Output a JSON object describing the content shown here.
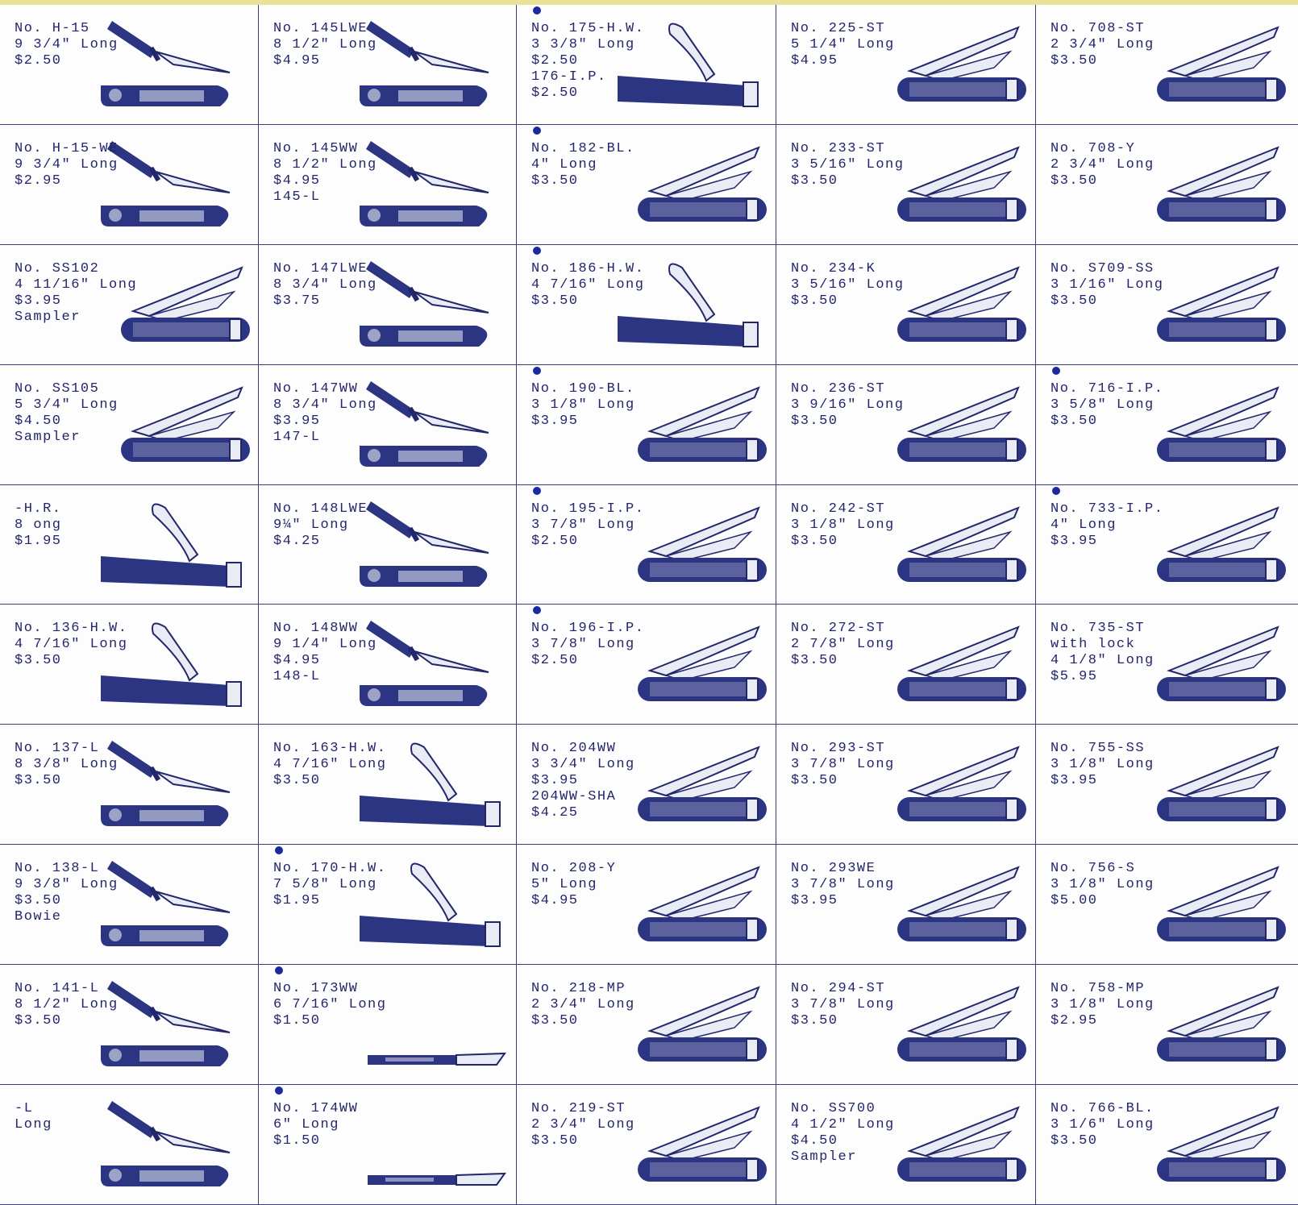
{
  "colors": {
    "ink": "#23276a",
    "handle": "#2c3582",
    "blade": "#e9ecf5",
    "accent": "#1c2a9e"
  },
  "cells": [
    {
      "lines": [
        "No. H-15",
        "9 3/4\" Long",
        "$2.50"
      ],
      "star": false,
      "icon": "sheath-knife-icon"
    },
    {
      "lines": [
        "No. 145LWE",
        "8 1/2\" Long",
        "$4.95"
      ],
      "star": false,
      "icon": "sheath-knife-icon"
    },
    {
      "lines": [
        "No. 175-H.W.",
        "3 3/8\" Long",
        "$2.50",
        "176-I.P.",
        "$2.50"
      ],
      "star": true,
      "icon": "hawkbill-knife-icon"
    },
    {
      "lines": [
        "No. 225-ST",
        "5 1/4\" Long",
        "$4.95"
      ],
      "star": false,
      "icon": "pocket-knife-icon"
    },
    {
      "lines": [
        "No. 708-ST",
        "2 3/4\" Long",
        "$3.50"
      ],
      "star": false,
      "icon": "pocket-knife-icon"
    },
    {
      "lines": [
        "No. H-15-WE",
        "9 3/4\" Long",
        "$2.95"
      ],
      "star": false,
      "icon": "sheath-knife-icon"
    },
    {
      "lines": [
        "No. 145WW",
        "8 1/2\" Long",
        "$4.95",
        "145-L"
      ],
      "star": false,
      "icon": "sheath-knife-icon"
    },
    {
      "lines": [
        "No. 182-BL.",
        "4\" Long",
        "$3.50"
      ],
      "star": true,
      "icon": "pocket-knife-icon"
    },
    {
      "lines": [
        "No. 233-ST",
        "3 5/16\" Long",
        "$3.50"
      ],
      "star": false,
      "icon": "pocket-knife-icon"
    },
    {
      "lines": [
        "No. 708-Y",
        "2 3/4\" Long",
        "$3.50"
      ],
      "star": false,
      "icon": "pocket-knife-icon"
    },
    {
      "lines": [
        "No. SS102",
        "4 11/16\" Long",
        "$3.95",
        "Sampler"
      ],
      "star": false,
      "icon": "pocket-knife-icon"
    },
    {
      "lines": [
        "No. 147LWE",
        "8 3/4\" Long",
        "$3.75"
      ],
      "star": false,
      "icon": "sheath-knife-icon"
    },
    {
      "lines": [
        "No. 186-H.W.",
        "4 7/16\" Long",
        "$3.50"
      ],
      "star": true,
      "icon": "hawkbill-knife-icon"
    },
    {
      "lines": [
        "No. 234-K",
        "3 5/16\" Long",
        "$3.50"
      ],
      "star": false,
      "icon": "pocket-knife-icon"
    },
    {
      "lines": [
        "No. S709-SS",
        "3 1/16\" Long",
        "$3.50"
      ],
      "star": false,
      "icon": "pocket-knife-icon"
    },
    {
      "lines": [
        "No. SS105",
        "5 3/4\" Long",
        "$4.50",
        "Sampler"
      ],
      "star": false,
      "icon": "pocket-knife-icon"
    },
    {
      "lines": [
        "No. 147WW",
        "8 3/4\" Long",
        "$3.95",
        "147-L"
      ],
      "star": false,
      "icon": "sheath-knife-icon"
    },
    {
      "lines": [
        "No. 190-BL.",
        "3 1/8\" Long",
        "$3.95"
      ],
      "star": true,
      "icon": "pocket-knife-icon"
    },
    {
      "lines": [
        "No. 236-ST",
        "3 9/16\" Long",
        "$3.50"
      ],
      "star": false,
      "icon": "pocket-knife-icon"
    },
    {
      "lines": [
        "No. 716-I.P.",
        "3 5/8\" Long",
        "$3.50"
      ],
      "star": true,
      "icon": "pocket-knife-icon"
    },
    {
      "lines": [
        "-H.R.",
        "8 ong",
        "$1.95"
      ],
      "star": false,
      "icon": "hawkbill-knife-icon"
    },
    {
      "lines": [
        "No. 148LWE",
        "9¼\" Long",
        "$4.25"
      ],
      "star": false,
      "icon": "sheath-knife-icon"
    },
    {
      "lines": [
        "No. 195-I.P.",
        "3 7/8\" Long",
        "$2.50"
      ],
      "star": true,
      "icon": "pocket-knife-icon"
    },
    {
      "lines": [
        "No. 242-ST",
        "3 1/8\" Long",
        "$3.50"
      ],
      "star": false,
      "icon": "pocket-knife-icon"
    },
    {
      "lines": [
        "No. 733-I.P.",
        "4\" Long",
        "$3.95"
      ],
      "star": true,
      "icon": "pocket-knife-icon"
    },
    {
      "lines": [
        "No. 136-H.W.",
        "4 7/16\" Long",
        "$3.50"
      ],
      "star": false,
      "icon": "hawkbill-knife-icon"
    },
    {
      "lines": [
        "No. 148WW",
        "9 1/4\" Long",
        "$4.95",
        "148-L"
      ],
      "star": false,
      "icon": "sheath-knife-icon"
    },
    {
      "lines": [
        "No. 196-I.P.",
        "3 7/8\" Long",
        "$2.50"
      ],
      "star": true,
      "icon": "pocket-knife-icon"
    },
    {
      "lines": [
        "No. 272-ST",
        "2 7/8\" Long",
        "$3.50"
      ],
      "star": false,
      "icon": "pocket-knife-icon"
    },
    {
      "lines": [
        "No. 735-ST",
        "with lock",
        "4 1/8\" Long",
        "$5.95"
      ],
      "star": false,
      "icon": "pocket-knife-icon"
    },
    {
      "lines": [
        "No. 137-L",
        "8 3/8\" Long",
        "$3.50"
      ],
      "star": false,
      "icon": "sheath-knife-icon"
    },
    {
      "lines": [
        "No. 163-H.W.",
        "4 7/16\" Long",
        "$3.50"
      ],
      "star": false,
      "icon": "hawkbill-knife-icon"
    },
    {
      "lines": [
        "No. 204WW",
        "3 3/4\" Long",
        "$3.95",
        "204WW-SHA",
        "$4.25"
      ],
      "star": false,
      "icon": "pocket-knife-icon"
    },
    {
      "lines": [
        "No. 293-ST",
        "3 7/8\" Long",
        "$3.50"
      ],
      "star": false,
      "icon": "pocket-knife-icon"
    },
    {
      "lines": [
        "No. 755-SS",
        "3 1/8\" Long",
        "$3.95"
      ],
      "star": false,
      "icon": "pocket-knife-icon"
    },
    {
      "lines": [
        "No. 138-L",
        "9 3/8\" Long",
        "$3.50",
        "Bowie"
      ],
      "star": false,
      "icon": "sheath-knife-icon"
    },
    {
      "lines": [
        "No. 170-H.W.",
        "7 5/8\" Long",
        "$1.95"
      ],
      "star": true,
      "icon": "hawkbill-knife-icon"
    },
    {
      "lines": [
        "No. 208-Y",
        "5\" Long",
        "$4.95"
      ],
      "star": false,
      "icon": "pocket-knife-icon"
    },
    {
      "lines": [
        "No. 293WE",
        "3 7/8\" Long",
        "$3.95"
      ],
      "star": false,
      "icon": "pocket-knife-icon"
    },
    {
      "lines": [
        "No. 756-S",
        "3 1/8\" Long",
        "$5.00"
      ],
      "star": false,
      "icon": "pocket-knife-icon"
    },
    {
      "lines": [
        "No. 141-L",
        "8 1/2\" Long",
        "$3.50"
      ],
      "star": false,
      "icon": "sheath-knife-icon"
    },
    {
      "lines": [
        "No. 173WW",
        "6 7/16\" Long",
        "$1.50"
      ],
      "star": true,
      "icon": "utility-knife-icon"
    },
    {
      "lines": [
        "No. 218-MP",
        "2 3/4\" Long",
        "$3.50"
      ],
      "star": false,
      "icon": "pocket-knife-icon"
    },
    {
      "lines": [
        "No. 294-ST",
        "3 7/8\" Long",
        "$3.50"
      ],
      "star": false,
      "icon": "pocket-knife-icon"
    },
    {
      "lines": [
        "No. 758-MP",
        "3 1/8\" Long",
        "$2.95"
      ],
      "star": false,
      "icon": "pocket-knife-icon"
    },
    {
      "lines": [
        "-L",
        "Long"
      ],
      "star": false,
      "icon": "sheath-knife-icon"
    },
    {
      "lines": [
        "No. 174WW",
        "6\" Long",
        "$1.50"
      ],
      "star": true,
      "icon": "utility-knife-icon"
    },
    {
      "lines": [
        "No. 219-ST",
        "2 3/4\" Long",
        "$3.50"
      ],
      "star": false,
      "icon": "pocket-knife-icon"
    },
    {
      "lines": [
        "No. SS700",
        "4 1/2\" Long",
        "$4.50",
        "Sampler"
      ],
      "star": false,
      "icon": "pocket-knife-icon"
    },
    {
      "lines": [
        "No. 766-BL.",
        "3 1/6\" Long",
        "$3.50"
      ],
      "star": false,
      "icon": "pocket-knife-icon"
    }
  ]
}
